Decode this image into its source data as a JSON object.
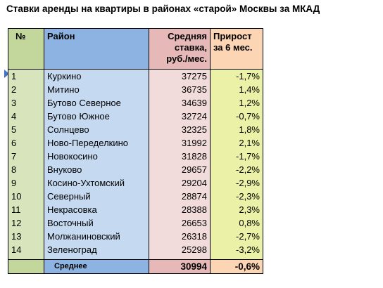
{
  "title": "Ставки аренды на квартиры в районах «старой» Москвы за МКАД",
  "headers": {
    "num": "№",
    "district": "Район",
    "rate": [
      "Средняя",
      "ставка,",
      "руб./мес."
    ],
    "growth": [
      "Прирост",
      "за 6 мес."
    ]
  },
  "rows": [
    {
      "num": "1",
      "district": "Куркино",
      "rate": "37275",
      "growth": "-1,7%"
    },
    {
      "num": "2",
      "district": "Митино",
      "rate": "36735",
      "growth": "1,4%"
    },
    {
      "num": "3",
      "district": "Бутово Северное",
      "rate": "34639",
      "growth": "1,2%"
    },
    {
      "num": "4",
      "district": "Бутово Южное",
      "rate": "32724",
      "growth": "-0,7%"
    },
    {
      "num": "5",
      "district": "Солнцево",
      "rate": "32325",
      "growth": "1,8%"
    },
    {
      "num": "6",
      "district": "Ново-Переделкино",
      "rate": "31992",
      "growth": "2,1%"
    },
    {
      "num": "7",
      "district": "Новокосино",
      "rate": "31828",
      "growth": "-1,7%"
    },
    {
      "num": "8",
      "district": "Внуково",
      "rate": "29657",
      "growth": "-2,2%"
    },
    {
      "num": "9",
      "district": "Косино-Ухтомский",
      "rate": "29204",
      "growth": "-2,9%"
    },
    {
      "num": "10",
      "district": "Северный",
      "rate": "28874",
      "growth": "-2,3%"
    },
    {
      "num": "11",
      "district": "Некрасовка",
      "rate": "28388",
      "growth": "2,3%"
    },
    {
      "num": "12",
      "district": "Восточный",
      "rate": "26653",
      "growth": "0,8%"
    },
    {
      "num": "13",
      "district": "Молжаниновский",
      "rate": "26318",
      "growth": "-2,7%"
    },
    {
      "num": "14",
      "district": "Зеленоград",
      "rate": "25298",
      "growth": "-3,2%"
    }
  ],
  "footer": {
    "label": "Среднее",
    "rate": "30994",
    "growth": "-0,6%"
  }
}
